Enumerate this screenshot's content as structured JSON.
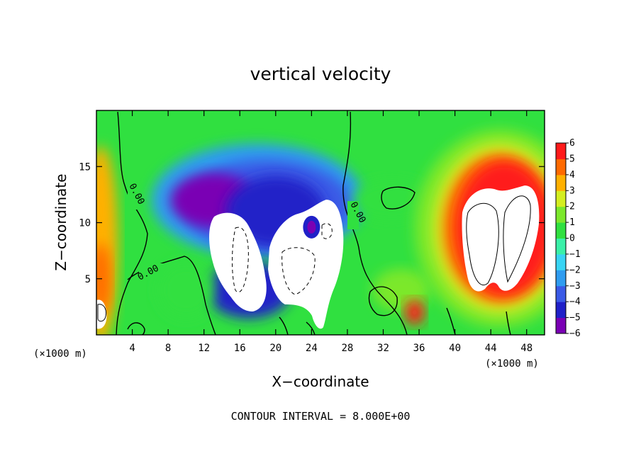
{
  "chart_data": {
    "type": "heatmap",
    "title": "vertical velocity",
    "xlabel": "X−coordinate",
    "ylabel": "Z−coordinate",
    "x_unit": "(×1000 m)",
    "z_unit": "(×1000 m)",
    "xlim": [
      0,
      50
    ],
    "ylim": [
      0,
      20
    ],
    "x_ticks": [
      4,
      8,
      12,
      16,
      20,
      24,
      28,
      32,
      36,
      40,
      44,
      48
    ],
    "x_tick_labels": [
      "4",
      "8",
      "12",
      "16",
      "20",
      "24",
      "28",
      "32",
      "36",
      "40",
      "44",
      "48"
    ],
    "y_ticks": [
      5,
      10,
      15
    ],
    "y_tick_labels": [
      "5",
      "10",
      "15"
    ],
    "colorbar": {
      "levels": [
        -6,
        -5,
        -4,
        -3,
        -2,
        -1,
        0,
        1,
        2,
        3,
        4,
        5,
        6
      ],
      "labels": [
        "−6",
        "−5",
        "−4",
        "−3",
        "−2",
        "−1",
        "0",
        "1",
        "2",
        "3",
        "4",
        "5",
        "6"
      ],
      "colors": [
        "#7a00b4",
        "#2020c8",
        "#3a5ae6",
        "#2f9cf0",
        "#38d4f4",
        "#3af0a8",
        "#30e040",
        "#7ce82c",
        "#d4ee20",
        "#ffb000",
        "#ff6a00",
        "#ff1a1a",
        "#ff8c8c"
      ]
    },
    "contour_labels": [
      "0.00",
      "0.00",
      "0.00"
    ],
    "features": [
      {
        "kind": "updraft",
        "x": 45.5,
        "z": 9.5,
        "peak": 9
      },
      {
        "kind": "updraft",
        "x": 1,
        "z": 5.5,
        "peak": 4
      },
      {
        "kind": "updraft",
        "x": 35.5,
        "z": 2,
        "peak": 5
      },
      {
        "kind": "downdraft",
        "x": 17,
        "z": 10.5,
        "peak": -8
      },
      {
        "kind": "downdraft",
        "x": 22.5,
        "z": 9,
        "peak": -8
      },
      {
        "kind": "downdraft",
        "x": 9.5,
        "z": 12,
        "peak": -5
      }
    ],
    "legend_position": "right",
    "grid": false
  },
  "footer": {
    "contour_interval": "CONTOUR INTERVAL = 8.000E+00"
  }
}
